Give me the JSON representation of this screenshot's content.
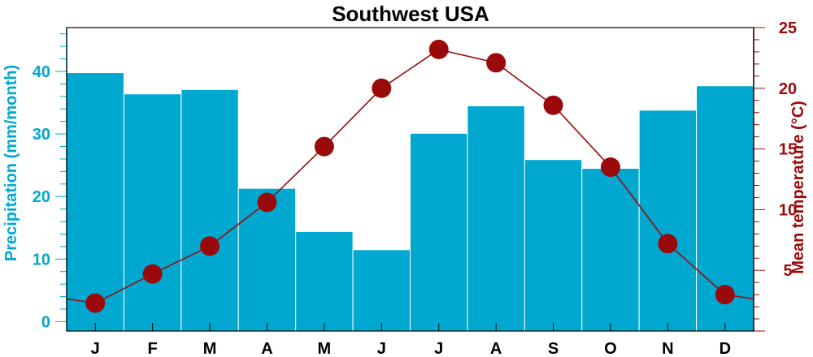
{
  "chart_data": {
    "type": "bar",
    "title": "Southwest USA",
    "categories": [
      "J",
      "F",
      "M",
      "A",
      "M",
      "J",
      "J",
      "A",
      "S",
      "O",
      "N",
      "D"
    ],
    "series": [
      {
        "type": "bar",
        "axis": "left",
        "color": "#00a8d0",
        "values": [
          39.8,
          36.4,
          37.1,
          21.3,
          14.4,
          11.5,
          30.1,
          34.5,
          25.9,
          24.5,
          33.8,
          37.7
        ]
      },
      {
        "type": "line",
        "axis": "right",
        "color": "#9b0a0a",
        "values": [
          2.3,
          4.7,
          7.0,
          10.6,
          15.2,
          20.0,
          23.2,
          22.1,
          18.6,
          13.5,
          7.2,
          3.0
        ]
      }
    ],
    "y_left": {
      "label": "Precipitation (mm/month)",
      "ylim": [
        -1.5,
        47
      ],
      "ticks": [
        0,
        10,
        20,
        30,
        40
      ],
      "color": "#00a8d0"
    },
    "y_right": {
      "label": "Mean temperature (°C)",
      "ylim": [
        0,
        25
      ],
      "ticks": [
        5,
        10,
        15,
        20,
        25
      ],
      "color": "#9b0a0a"
    },
    "line_extends_to_edges": true,
    "grid": false
  }
}
